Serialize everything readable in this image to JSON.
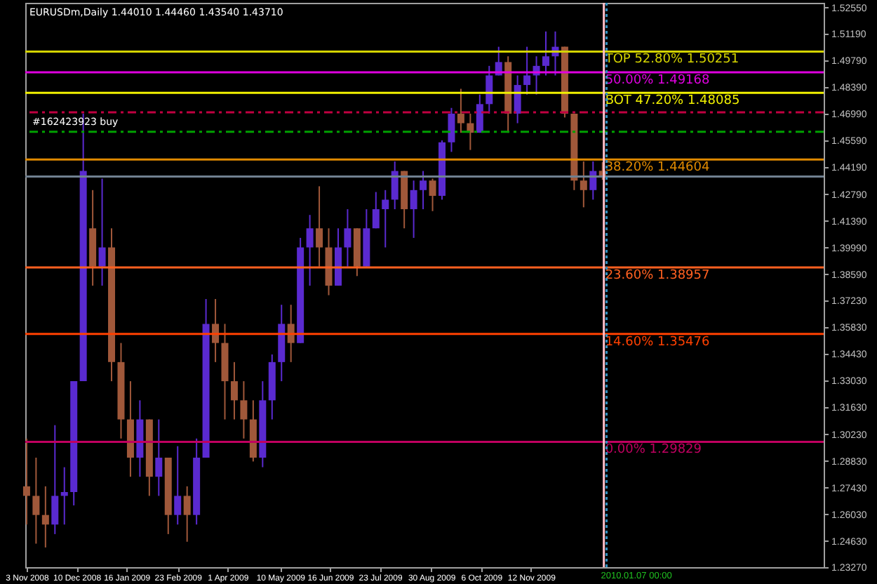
{
  "chart_data": {
    "type": "candlestick",
    "title": "EURUSDm,Daily  1.44010 1.44460 1.43540 1.43710",
    "x": [
      "2008-11-03",
      "2008-11-10",
      "2008-11-17",
      "2008-11-24",
      "2008-12-01",
      "2008-12-08",
      "2008-12-15",
      "2008-12-22",
      "2008-12-29",
      "2009-01-05",
      "2009-01-12",
      "2009-01-19",
      "2009-01-26",
      "2009-02-02",
      "2009-02-09",
      "2009-02-16",
      "2009-02-23",
      "2009-03-02",
      "2009-03-09",
      "2009-03-16",
      "2009-03-23",
      "2009-03-30",
      "2009-04-06",
      "2009-04-13",
      "2009-04-20",
      "2009-04-27",
      "2009-05-04",
      "2009-05-11",
      "2009-05-18",
      "2009-05-25",
      "2009-06-01",
      "2009-06-08",
      "2009-06-15",
      "2009-06-22",
      "2009-06-29",
      "2009-07-06",
      "2009-07-13",
      "2009-07-20",
      "2009-07-27",
      "2009-08-03",
      "2009-08-10",
      "2009-08-17",
      "2009-08-24",
      "2009-08-31",
      "2009-09-07",
      "2009-09-14",
      "2009-09-21",
      "2009-09-28",
      "2009-10-05",
      "2009-10-12",
      "2009-10-19",
      "2009-10-26",
      "2009-11-02",
      "2009-11-09",
      "2009-11-16",
      "2009-11-23",
      "2009-11-30",
      "2009-12-07",
      "2009-12-14",
      "2009-12-21",
      "2009-12-28",
      "2010-01-04"
    ],
    "ohlc": [
      [
        1.275,
        1.3,
        1.255,
        1.27
      ],
      [
        1.27,
        1.29,
        1.245,
        1.26
      ],
      [
        1.26,
        1.275,
        1.243,
        1.255
      ],
      [
        1.255,
        1.307,
        1.25,
        1.27
      ],
      [
        1.27,
        1.285,
        1.255,
        1.272
      ],
      [
        1.272,
        1.33,
        1.265,
        1.33
      ],
      [
        1.33,
        1.47,
        1.33,
        1.44
      ],
      [
        1.41,
        1.43,
        1.38,
        1.39
      ],
      [
        1.39,
        1.436,
        1.38,
        1.4
      ],
      [
        1.4,
        1.41,
        1.33,
        1.34
      ],
      [
        1.34,
        1.35,
        1.3,
        1.31
      ],
      [
        1.31,
        1.33,
        1.28,
        1.29
      ],
      [
        1.29,
        1.32,
        1.28,
        1.31
      ],
      [
        1.31,
        1.31,
        1.27,
        1.28
      ],
      [
        1.28,
        1.31,
        1.27,
        1.29
      ],
      [
        1.29,
        1.29,
        1.25,
        1.26
      ],
      [
        1.26,
        1.296,
        1.255,
        1.27
      ],
      [
        1.27,
        1.275,
        1.246,
        1.26
      ],
      [
        1.26,
        1.3,
        1.255,
        1.29
      ],
      [
        1.29,
        1.373,
        1.29,
        1.36
      ],
      [
        1.36,
        1.373,
        1.34,
        1.35
      ],
      [
        1.35,
        1.36,
        1.31,
        1.33
      ],
      [
        1.33,
        1.34,
        1.31,
        1.32
      ],
      [
        1.32,
        1.33,
        1.3,
        1.31
      ],
      [
        1.31,
        1.32,
        1.288,
        1.29
      ],
      [
        1.29,
        1.33,
        1.285,
        1.32
      ],
      [
        1.32,
        1.344,
        1.31,
        1.34
      ],
      [
        1.34,
        1.37,
        1.33,
        1.36
      ],
      [
        1.36,
        1.37,
        1.34,
        1.35
      ],
      [
        1.35,
        1.405,
        1.35,
        1.4
      ],
      [
        1.4,
        1.417,
        1.38,
        1.41
      ],
      [
        1.41,
        1.432,
        1.39,
        1.4
      ],
      [
        1.4,
        1.41,
        1.375,
        1.38
      ],
      [
        1.38,
        1.41,
        1.38,
        1.4
      ],
      [
        1.4,
        1.42,
        1.39,
        1.41
      ],
      [
        1.41,
        1.41,
        1.385,
        1.39
      ],
      [
        1.39,
        1.42,
        1.39,
        1.41
      ],
      [
        1.41,
        1.429,
        1.41,
        1.42
      ],
      [
        1.42,
        1.43,
        1.4,
        1.425
      ],
      [
        1.425,
        1.445,
        1.42,
        1.44
      ],
      [
        1.44,
        1.44,
        1.41,
        1.42
      ],
      [
        1.42,
        1.435,
        1.405,
        1.43
      ],
      [
        1.43,
        1.44,
        1.42,
        1.435
      ],
      [
        1.435,
        1.436,
        1.419,
        1.427
      ],
      [
        1.427,
        1.456,
        1.425,
        1.455
      ],
      [
        1.455,
        1.473,
        1.45,
        1.47
      ],
      [
        1.47,
        1.483,
        1.46,
        1.465
      ],
      [
        1.465,
        1.47,
        1.451,
        1.46
      ],
      [
        1.46,
        1.48,
        1.46,
        1.475
      ],
      [
        1.475,
        1.495,
        1.47,
        1.49
      ],
      [
        1.49,
        1.505,
        1.49,
        1.497
      ],
      [
        1.497,
        1.5,
        1.46,
        1.47
      ],
      [
        1.47,
        1.49,
        1.465,
        1.485
      ],
      [
        1.485,
        1.505,
        1.48,
        1.49
      ],
      [
        1.49,
        1.5,
        1.48,
        1.495
      ],
      [
        1.495,
        1.513,
        1.49,
        1.5
      ],
      [
        1.5,
        1.513,
        1.49,
        1.505
      ],
      [
        1.505,
        1.505,
        1.468,
        1.47
      ],
      [
        1.47,
        1.47,
        1.43,
        1.435
      ],
      [
        1.435,
        1.445,
        1.421,
        1.43
      ],
      [
        1.43,
        1.445,
        1.425,
        1.44
      ],
      [
        1.4401,
        1.4446,
        1.4354,
        1.4371
      ]
    ],
    "xlim": [
      "2008-11-02",
      "2010-06-17"
    ],
    "xticks": [
      {
        "value": "2008-11-03",
        "label": "3 Nov 2008"
      },
      {
        "value": "2008-12-10",
        "label": "10 Dec 2008"
      },
      {
        "value": "2009-01-16",
        "label": "16 Jan 2009"
      },
      {
        "value": "2009-02-23",
        "label": "23 Feb 2009"
      },
      {
        "value": "2009-04-01",
        "label": "1 Apr 2009"
      },
      {
        "value": "2009-05-10",
        "label": "10 May 2009"
      },
      {
        "value": "2009-06-16",
        "label": "16 Jun 2009"
      },
      {
        "value": "2009-07-23",
        "label": "23 Jul 2009"
      },
      {
        "value": "2009-08-30",
        "label": "30 Aug 2009"
      },
      {
        "value": "2009-10-06",
        "label": "6 Oct 2009"
      },
      {
        "value": "2009-11-12",
        "label": "12 Nov 2009"
      }
    ],
    "ylim": [
      1.2327,
      1.528
    ],
    "yticks": [
      {
        "value": 1.5255,
        "label": "1.52550"
      },
      {
        "value": 1.5119,
        "label": "1.51190"
      },
      {
        "value": 1.4979,
        "label": "1.49790"
      },
      {
        "value": 1.4839,
        "label": "1.48390"
      },
      {
        "value": 1.4699,
        "label": "1.46990"
      },
      {
        "value": 1.4559,
        "label": "1.45590"
      },
      {
        "value": 1.4419,
        "label": "1.44190"
      },
      {
        "value": 1.4279,
        "label": "1.42790"
      },
      {
        "value": 1.4139,
        "label": "1.41390"
      },
      {
        "value": 1.3999,
        "label": "1.39990"
      },
      {
        "value": 1.3859,
        "label": "1.38590"
      },
      {
        "value": 1.3723,
        "label": "1.37230"
      },
      {
        "value": 1.3583,
        "label": "1.35830"
      },
      {
        "value": 1.3443,
        "label": "1.34430"
      },
      {
        "value": 1.3303,
        "label": "1.33030"
      },
      {
        "value": 1.3163,
        "label": "1.31630"
      },
      {
        "value": 1.3023,
        "label": "1.30230"
      },
      {
        "value": 1.2883,
        "label": "1.28830"
      },
      {
        "value": 1.2743,
        "label": "1.27430"
      },
      {
        "value": 1.2603,
        "label": "1.26030"
      },
      {
        "value": 1.2463,
        "label": "1.24630"
      },
      {
        "value": 1.2327,
        "label": "1.23270"
      }
    ],
    "ref_lines": [
      {
        "axis": "y",
        "value": 1.50251,
        "label": "TOP 52.80%  1.50251",
        "color": "#d4d400",
        "line_style": "solid"
      },
      {
        "axis": "y",
        "value": 1.49168,
        "label": "50.00%  1.49168",
        "color": "#e000e0",
        "line_style": "solid"
      },
      {
        "axis": "y",
        "value": 1.48085,
        "label": "BOT 47.20%  1.48085",
        "color": "#f0f000",
        "line_style": "solid"
      },
      {
        "axis": "y",
        "value": 1.4707,
        "color": "#c00040",
        "line_style": "dashed"
      },
      {
        "axis": "y",
        "value": 1.4605,
        "label": "#162423923 buy",
        "color": "#00a000",
        "line_style": "dashed"
      },
      {
        "axis": "y",
        "value": 1.44604,
        "label": "38.20%  1.44604",
        "color": "#e08a00",
        "line_style": "solid"
      },
      {
        "axis": "y",
        "value": 1.4371,
        "color": "#708090",
        "line_style": "solid"
      },
      {
        "axis": "y",
        "value": 1.38957,
        "label": "23.60%  1.38957",
        "color": "#ff6020",
        "line_style": "solid"
      },
      {
        "axis": "y",
        "value": 1.35476,
        "label": "14.60%  1.35476",
        "color": "#ff4000",
        "line_style": "solid"
      },
      {
        "axis": "y",
        "value": 1.29829,
        "label": "0.00%  1.29829",
        "color": "#c00060",
        "line_style": "solid"
      },
      {
        "axis": "x",
        "value": "2010-01-05",
        "color": "#ffc0cb",
        "line_style": "solid"
      },
      {
        "axis": "x",
        "value": "2010-01-07",
        "label": "2010.01.07 00:00",
        "color": "#3090c0",
        "line_style": "dotted"
      }
    ],
    "grid": false
  }
}
